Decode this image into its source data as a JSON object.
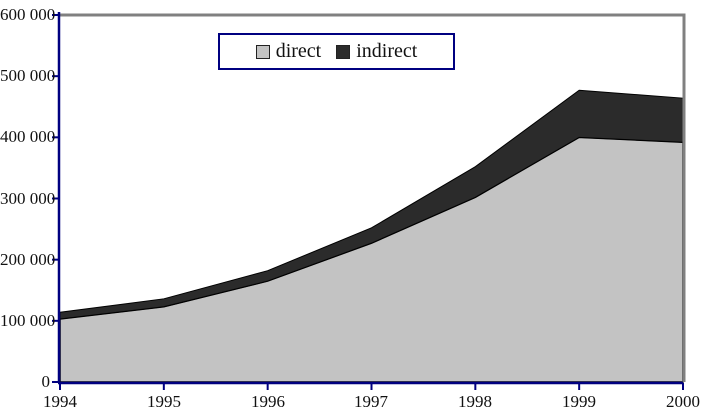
{
  "chart_data": {
    "type": "area",
    "stacked": true,
    "title": "",
    "xlabel": "",
    "ylabel": "",
    "x": [
      1994,
      1995,
      1996,
      1997,
      1998,
      1999,
      2000
    ],
    "xticks": [
      "1994",
      "1995",
      "1996",
      "1997",
      "1998",
      "1999",
      "2000"
    ],
    "yticks": [
      "600 000",
      "500 000",
      "400 000",
      "300 000",
      "200 000",
      "100 000",
      "0"
    ],
    "ylim": [
      0,
      600000
    ],
    "ytick_step": 100000,
    "grid": false,
    "legend_position": "top-center-inside",
    "series": [
      {
        "name": "direct",
        "color": "#c3c3c3",
        "values": [
          103000,
          123000,
          165000,
          227000,
          302000,
          400000,
          392000
        ]
      },
      {
        "name": "indirect",
        "color": "#2b2b2b",
        "values": [
          11000,
          13000,
          17000,
          25000,
          50000,
          77000,
          72000
        ]
      }
    ],
    "colors": {
      "axis": "#000080",
      "frame": "#808080",
      "outline": "#000000",
      "background": "#ffffff"
    }
  }
}
